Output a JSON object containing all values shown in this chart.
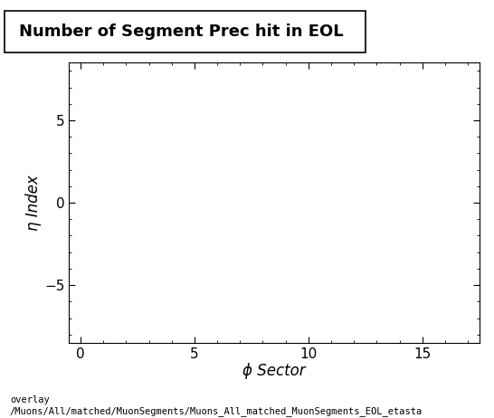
{
  "title": "Number of Segment Prec hit in EOL",
  "xlabel": "ϕ Sector",
  "ylabel": "η Index",
  "xlim": [
    -0.5,
    17.5
  ],
  "ylim": [
    -8.5,
    8.5
  ],
  "xticks": [
    0,
    5,
    10,
    15
  ],
  "yticks": [
    -5,
    0,
    5
  ],
  "background_color": "#ffffff",
  "plot_bg_color": "#ffffff",
  "footer_line1": "overlay",
  "footer_line2": "/Muons/All/matched/MuonSegments/Muons_All_matched_MuonSegments_EOL_etasta",
  "title_fontsize": 13,
  "axis_label_fontsize": 12,
  "tick_fontsize": 11,
  "footer_fontsize": 7.5
}
